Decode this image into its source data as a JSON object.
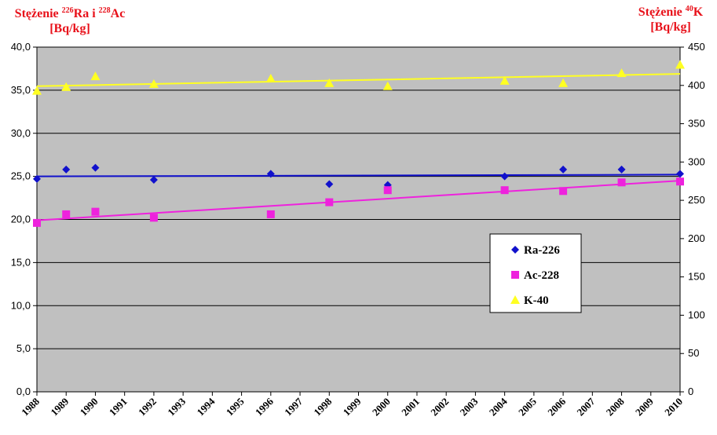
{
  "chart_data": {
    "type": "scatter",
    "x_tick_labels": [
      "1988",
      "1989",
      "1990",
      "1991",
      "1992",
      "1993",
      "1994",
      "1995",
      "1996",
      "1997",
      "1998",
      "1999",
      "2000",
      "2001",
      "2002",
      "2003",
      "2004",
      "2005",
      "2006",
      "2007",
      "2008",
      "2009",
      "2010"
    ],
    "y_left": {
      "label_pre": "Stężenie ",
      "label_sup1": "226",
      "label_mid": "Ra i ",
      "label_sup2": "228",
      "label_post": "Ac",
      "unit": "[Bq/kg]",
      "range": [
        0,
        40
      ],
      "tick_labels": [
        "0,0",
        "5,0",
        "10,0",
        "15,0",
        "20,0",
        "25,0",
        "30,0",
        "35,0",
        "40,0"
      ]
    },
    "y_right": {
      "label_pre": "Stężenie ",
      "label_sup": "40",
      "label_post": "K",
      "unit": "[Bq/kg]",
      "range": [
        0,
        450
      ],
      "tick_labels": [
        "0",
        "50",
        "100",
        "150",
        "200",
        "250",
        "300",
        "350",
        "400",
        "450"
      ]
    },
    "series": [
      {
        "name": "Ra-226",
        "marker": "diamond",
        "color": "#1111cc",
        "axis": "left",
        "points": [
          [
            1988,
            24.7
          ],
          [
            1989,
            25.8
          ],
          [
            1990,
            26.0
          ],
          [
            1992,
            24.6
          ],
          [
            1996,
            25.3
          ],
          [
            1998,
            24.1
          ],
          [
            2000,
            24.0
          ],
          [
            2004,
            25.0
          ],
          [
            2006,
            25.8
          ],
          [
            2008,
            25.8
          ],
          [
            2010,
            25.3
          ]
        ],
        "trend": [
          [
            1988,
            25.0
          ],
          [
            2010,
            25.2
          ]
        ]
      },
      {
        "name": "Ac-228",
        "marker": "square",
        "color": "#ee22dd",
        "axis": "left",
        "points": [
          [
            1988,
            19.6
          ],
          [
            1989,
            20.6
          ],
          [
            1990,
            20.9
          ],
          [
            1992,
            20.2
          ],
          [
            1996,
            20.6
          ],
          [
            1998,
            22.0
          ],
          [
            2000,
            23.4
          ],
          [
            2004,
            23.4
          ],
          [
            2006,
            23.3
          ],
          [
            2008,
            24.3
          ],
          [
            2010,
            24.4
          ]
        ],
        "trend": [
          [
            1988,
            19.9
          ],
          [
            2010,
            24.5
          ]
        ]
      },
      {
        "name": "K-40",
        "marker": "triangle",
        "color": "#ffff22",
        "axis": "right",
        "points": [
          [
            1988,
            393
          ],
          [
            1989,
            398
          ],
          [
            1990,
            412
          ],
          [
            1992,
            402
          ],
          [
            1996,
            409
          ],
          [
            1998,
            403
          ],
          [
            2000,
            399
          ],
          [
            2004,
            406
          ],
          [
            2006,
            403
          ],
          [
            2008,
            416
          ],
          [
            2010,
            427
          ]
        ],
        "trend": [
          [
            1988,
            399
          ],
          [
            2010,
            415
          ]
        ]
      }
    ],
    "grid": "horizontal",
    "legend_position": "center-right",
    "plot_background": "#c0c0c0"
  }
}
